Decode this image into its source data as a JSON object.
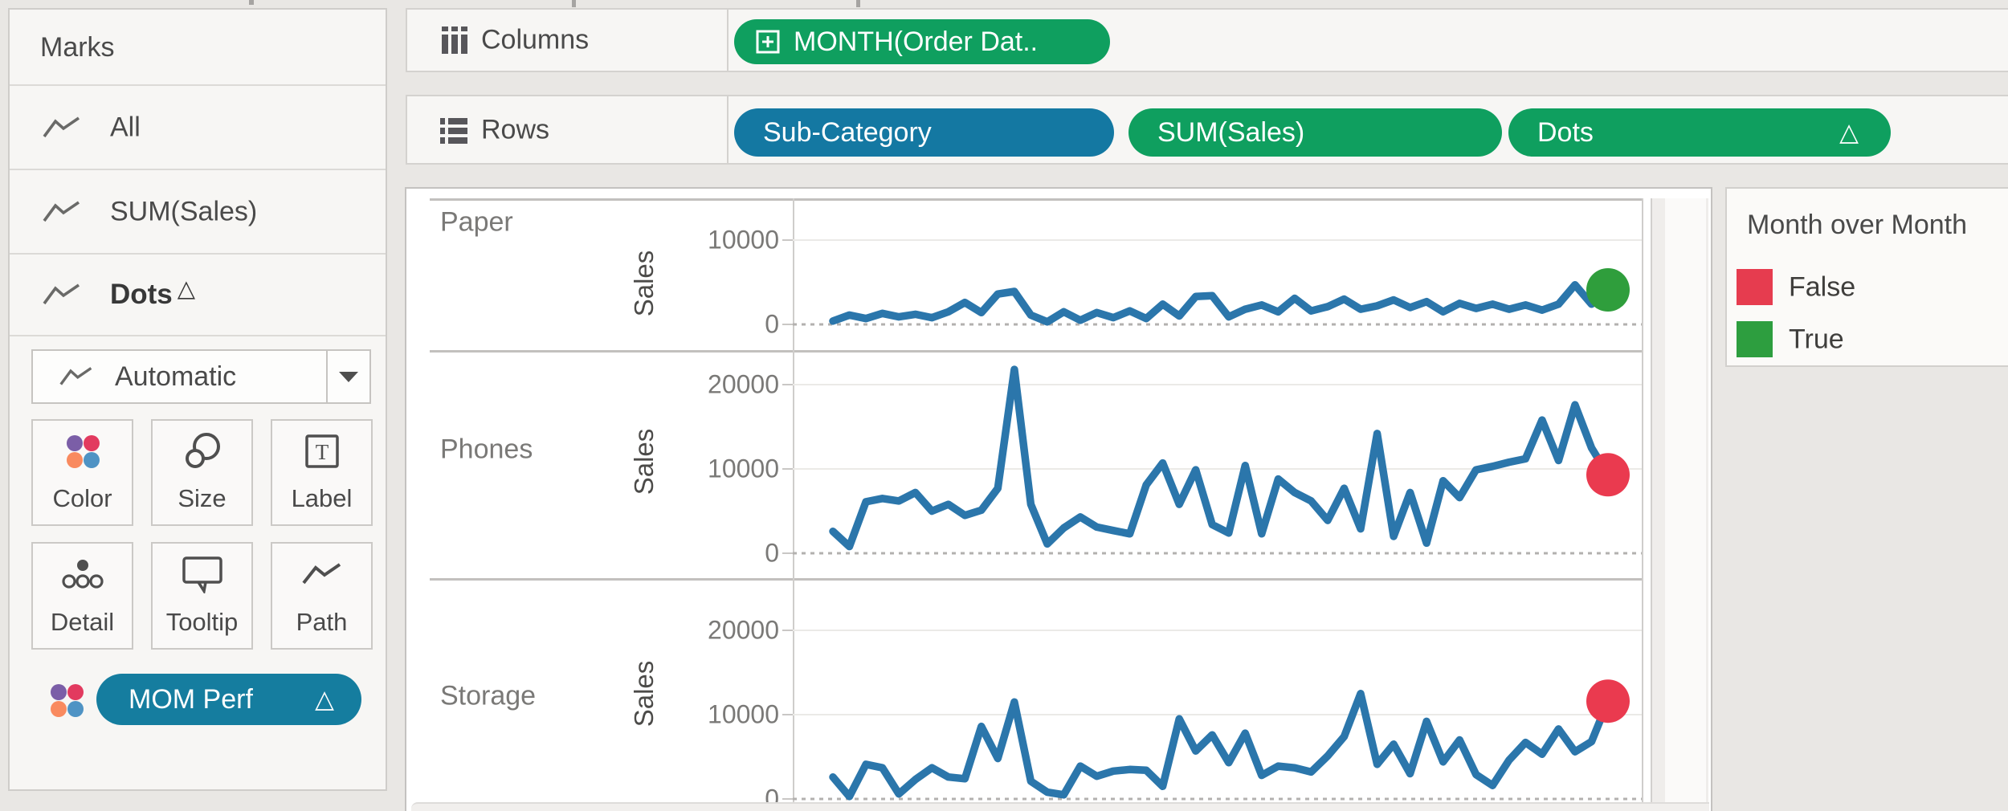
{
  "colors": {
    "pill_green": "#0f9f5f",
    "pill_blue": "#1478a2",
    "mom_pill_blue": "#157d9f",
    "line_blue": "#2b76ab",
    "dot_green": "#2f9e3c",
    "dot_red": "#ea3a4f",
    "legend_red": "#e63c4f",
    "legend_green": "#2d9e3f",
    "palette_icon": [
      "#7b5ea7",
      "#e23a5f",
      "#f98a5f",
      "#4f93c4"
    ]
  },
  "marks_panel": {
    "title": "Marks",
    "items": [
      {
        "label": "All",
        "delta": ""
      },
      {
        "label": "SUM(Sales)",
        "delta": ""
      },
      {
        "label": "Dots",
        "delta": "△"
      }
    ],
    "mark_type_dropdown": {
      "value": "Automatic"
    },
    "buttons": [
      {
        "label": "Color"
      },
      {
        "label": "Size"
      },
      {
        "label": "Label"
      },
      {
        "label": "Detail"
      },
      {
        "label": "Tooltip"
      },
      {
        "label": "Path"
      }
    ],
    "label_icon_glyph": "T",
    "encoding_pill": {
      "label": "MOM Perf",
      "delta": "△"
    }
  },
  "shelves": {
    "columns": {
      "label": "Columns",
      "pills": [
        {
          "text": "MONTH(Order Dat..",
          "type": "green",
          "icon": "plus-box"
        }
      ]
    },
    "rows": {
      "label": "Rows",
      "pills": [
        {
          "text": "Sub-Category",
          "type": "blue"
        },
        {
          "text": "SUM(Sales)",
          "type": "green"
        },
        {
          "text": "Dots",
          "type": "green",
          "delta": "△"
        }
      ]
    }
  },
  "legend": {
    "title": "Month over Month",
    "items": [
      {
        "label": "False",
        "color": "#e63c4f"
      },
      {
        "label": "True",
        "color": "#2d9e3f"
      }
    ]
  },
  "chart_data": {
    "type": "line",
    "title": "",
    "x_points": 48,
    "grid": true,
    "zero_reference_line": "dashed",
    "rows": [
      {
        "category": "Paper",
        "ylabel": "Sales",
        "yticks": [
          0,
          10000
        ],
        "end_dot": {
          "legend": "True",
          "color": "#2f9e3c"
        },
        "values": [
          400,
          1100,
          700,
          1300,
          900,
          1200,
          800,
          1500,
          2600,
          1400,
          3600,
          3900,
          1100,
          300,
          1500,
          500,
          1400,
          800,
          1600,
          700,
          2400,
          1000,
          3300,
          3400,
          900,
          1800,
          2300,
          1500,
          3100,
          1600,
          2100,
          3000,
          1800,
          2200,
          2900,
          2000,
          2700,
          1500,
          2500,
          1900,
          2400,
          1800,
          2300,
          1700,
          2400,
          4700,
          2400,
          4100
        ]
      },
      {
        "category": "Phones",
        "ylabel": "Sales",
        "yticks": [
          0,
          10000,
          20000
        ],
        "end_dot": {
          "legend": "False",
          "color": "#ea3a4f"
        },
        "values": [
          2600,
          800,
          6100,
          6500,
          6200,
          7200,
          5000,
          5800,
          4500,
          5100,
          7700,
          21800,
          5800,
          1100,
          3000,
          4300,
          3100,
          2700,
          2300,
          8100,
          10700,
          5800,
          9900,
          3400,
          2400,
          10400,
          2300,
          8800,
          7200,
          6200,
          3900,
          7700,
          2900,
          14200,
          2000,
          7200,
          1200,
          8600,
          6600,
          9900,
          10300,
          10800,
          11200,
          15800,
          11000,
          17600,
          12500,
          9300
        ]
      },
      {
        "category": "Storage",
        "ylabel": "Sales",
        "yticks": [
          0,
          10000,
          20000
        ],
        "end_dot": {
          "legend": "False",
          "color": "#ea3a4f"
        },
        "values": [
          2600,
          300,
          4100,
          3700,
          600,
          2300,
          3700,
          2600,
          2400,
          8600,
          4800,
          11500,
          2100,
          800,
          500,
          3900,
          2700,
          3300,
          3500,
          3400,
          1500,
          9500,
          5700,
          7600,
          4300,
          7800,
          2800,
          3900,
          3700,
          3200,
          5100,
          7400,
          12500,
          4100,
          6500,
          3000,
          9200,
          4400,
          7000,
          2900,
          1600,
          4600,
          6700,
          5300,
          8300,
          5600,
          6800,
          11600
        ]
      }
    ]
  }
}
